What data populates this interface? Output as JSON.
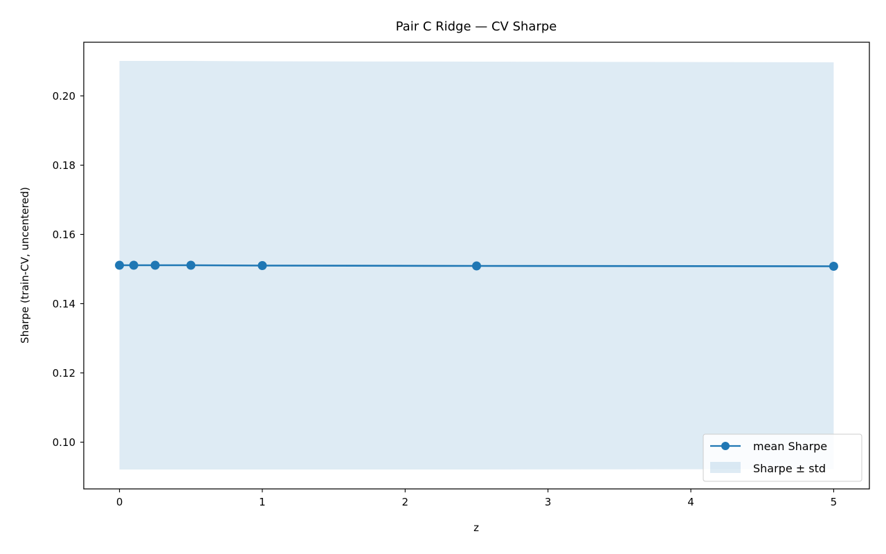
{
  "chart_data": {
    "type": "line",
    "title": "Pair C Ridge — CV Sharpe",
    "xlabel": "z",
    "ylabel": "Sharpe (train-CV, uncentered)",
    "xlim": [
      -0.25,
      5.25
    ],
    "ylim": [
      0.0865,
      0.2155
    ],
    "xticks": [
      0,
      1,
      2,
      3,
      4,
      5
    ],
    "xtick_labels": [
      "0",
      "1",
      "2",
      "3",
      "4",
      "5"
    ],
    "yticks": [
      0.1,
      0.12,
      0.14,
      0.16,
      0.18,
      0.2
    ],
    "ytick_labels": [
      "0.10",
      "0.12",
      "0.14",
      "0.16",
      "0.18",
      "0.20"
    ],
    "grid": false,
    "legend_position": "lower-right",
    "series": [
      {
        "name": "mean Sharpe",
        "color": "#1f77b4",
        "marker": "circle",
        "x": [
          0,
          0.1,
          0.25,
          0.5,
          1,
          2.5,
          5
        ],
        "y": [
          0.1511,
          0.1511,
          0.1511,
          0.1511,
          0.151,
          0.1509,
          0.1508
        ]
      }
    ],
    "band": {
      "name": "Sharpe ± std",
      "color": "#1f77b4",
      "opacity": 0.15,
      "x": [
        0,
        0.1,
        0.25,
        0.5,
        1,
        2.5,
        5
      ],
      "lower": [
        0.0921,
        0.0921,
        0.0921,
        0.0921,
        0.0921,
        0.0921,
        0.0922
      ],
      "upper": [
        0.2101,
        0.2101,
        0.2101,
        0.2101,
        0.21,
        0.2099,
        0.2097
      ]
    }
  }
}
